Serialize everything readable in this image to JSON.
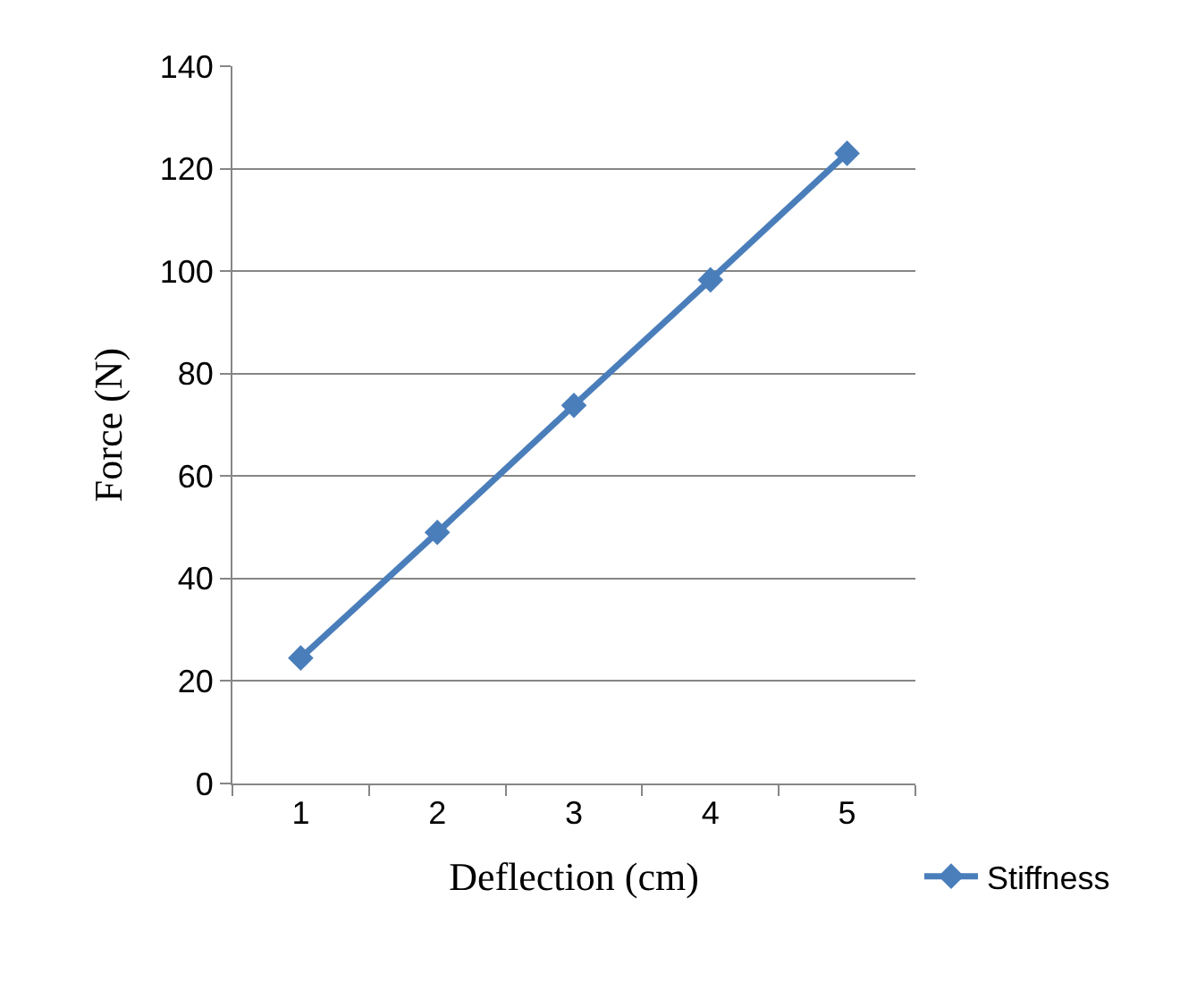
{
  "chart_data": {
    "type": "line",
    "xlabel": "Deflection (cm)",
    "ylabel": "Force (N)",
    "categories": [
      "1",
      "2",
      "3",
      "4",
      "5"
    ],
    "series": [
      {
        "name": "Stiffness",
        "color": "#4a7ebb",
        "values": [
          24.5,
          49,
          73.8,
          98.3,
          123
        ]
      }
    ],
    "ylim": [
      0,
      140
    ],
    "yticks": [
      0,
      20,
      40,
      60,
      80,
      100,
      120,
      140
    ],
    "grid": "y",
    "legend": "bottom right",
    "marker": "diamond",
    "line_style": "solid"
  }
}
